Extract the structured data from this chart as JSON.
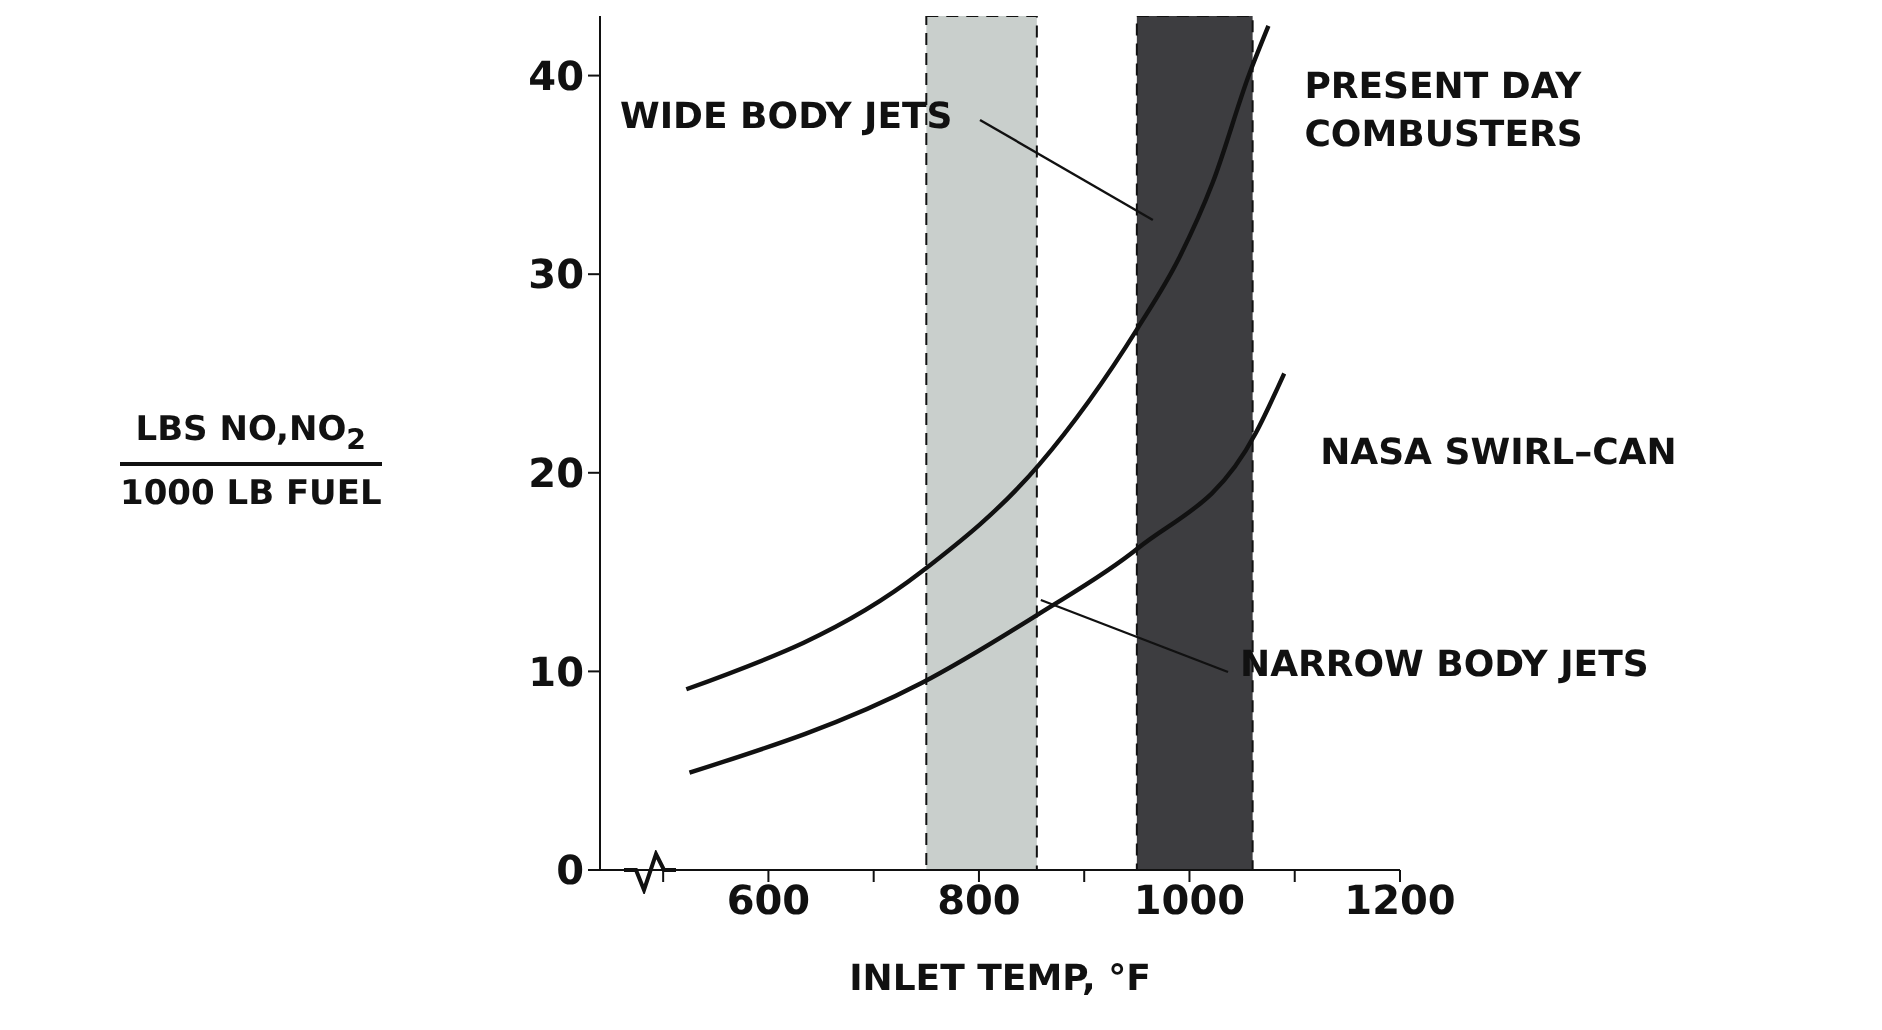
{
  "chart_data": {
    "type": "line",
    "xlabel": "INLET TEMP, °F",
    "ylabel": "LBS NO,NO$_{2}$\n1000 LB FUEL",
    "xlim": [
      440,
      1200
    ],
    "xticks": [
      {
        "value": 500,
        "label": null
      },
      600,
      {
        "value": 700,
        "label": null
      },
      800,
      {
        "value": 900,
        "label": null
      },
      1000,
      {
        "value": 1100,
        "label": null
      },
      1200
    ],
    "ylim": [
      0,
      43
    ],
    "yticks": [
      0,
      10,
      20,
      30,
      40
    ],
    "series": [
      {
        "name": "PRESENT DAY COMBUSTERS",
        "color": "#111111",
        "x": [
          522,
          745,
          857,
          951,
          990,
          1022,
          1057,
          1075
        ],
        "values": [
          9.1,
          15,
          20.4,
          27.3,
          30.8,
          34.6,
          40.1,
          42.5
        ]
      },
      {
        "name": "NASA SWIRL–CAN",
        "color": "#111111",
        "x": [
          525,
          745,
          857,
          951,
          1063,
          1090
        ],
        "values": [
          4.9,
          9.4,
          12.9,
          16.2,
          22,
          25
        ]
      }
    ],
    "bands": [
      {
        "axis": "x",
        "from": 750,
        "to": 855,
        "label": "NARROW BODY JETS",
        "color": "#c9cfcc"
      },
      {
        "axis": "x",
        "from": 950,
        "to": 1060,
        "label": "WIDE BODY JETS",
        "color": "#3d3d40"
      }
    ],
    "marker": "none",
    "line_style": "solid"
  }
}
